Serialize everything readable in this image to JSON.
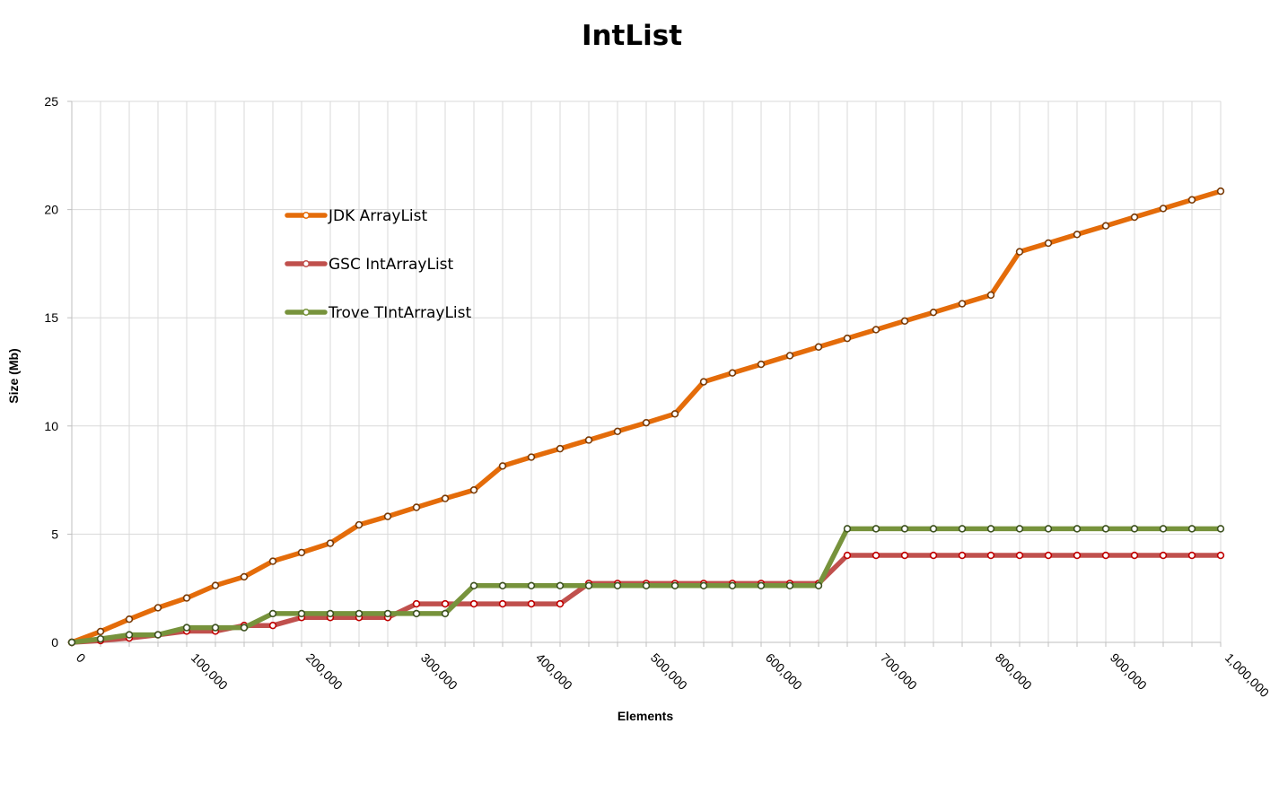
{
  "chart_data": {
    "type": "line",
    "title": "IntList",
    "xlabel": "Elements",
    "ylabel": "Size (Mb)",
    "xlim": [
      0,
      1000000
    ],
    "ylim": [
      0,
      25
    ],
    "x_ticks": [
      0,
      100000,
      200000,
      300000,
      400000,
      500000,
      600000,
      700000,
      800000,
      900000,
      1000000
    ],
    "x_tick_labels": [
      "0",
      "100,000",
      "200,000",
      "300,000",
      "400,000",
      "500,000",
      "600,000",
      "700,000",
      "800,000",
      "900,000",
      "1,000,000"
    ],
    "y_ticks": [
      0,
      5,
      10,
      15,
      20,
      25
    ],
    "y_tick_labels": [
      "0",
      "5",
      "10",
      "15",
      "20",
      "25"
    ],
    "grid": true,
    "legend_position": "upper-left-inside",
    "x": [
      0,
      25000,
      50000,
      75000,
      100000,
      125000,
      150000,
      175000,
      200000,
      225000,
      250000,
      275000,
      300000,
      325000,
      350000,
      375000,
      400000,
      425000,
      450000,
      475000,
      500000,
      525000,
      550000,
      575000,
      600000,
      625000,
      650000,
      675000,
      700000,
      725000,
      750000,
      775000,
      800000,
      825000,
      850000,
      875000,
      900000,
      925000,
      950000,
      975000,
      1000000
    ],
    "series": [
      {
        "name": "JDK ArrayList",
        "color": "#e46c0a",
        "values": [
          0,
          0.5,
          1.07,
          1.6,
          2.05,
          2.63,
          3.03,
          3.75,
          4.15,
          4.58,
          5.43,
          5.82,
          6.24,
          6.65,
          7.04,
          8.15,
          8.56,
          8.95,
          9.35,
          9.75,
          10.15,
          10.56,
          12.04,
          12.45,
          12.85,
          13.25,
          13.65,
          14.05,
          14.45,
          14.85,
          15.25,
          15.65,
          16.05,
          18.05,
          18.45,
          18.85,
          19.25,
          19.65,
          20.05,
          20.45,
          20.85
        ]
      },
      {
        "name": "GSC IntArrayList",
        "color": "#c0504d",
        "values": [
          0,
          0.08,
          0.2,
          0.35,
          0.52,
          0.52,
          0.78,
          0.78,
          1.15,
          1.15,
          1.15,
          1.15,
          1.78,
          1.78,
          1.78,
          1.78,
          1.78,
          1.78,
          2.72,
          2.72,
          2.72,
          2.72,
          2.72,
          2.72,
          2.72,
          2.72,
          2.72,
          4.02,
          4.02,
          4.02,
          4.02,
          4.02,
          4.02,
          4.02,
          4.02,
          4.02,
          4.02,
          4.02,
          4.02,
          4.02,
          4.02
        ]
      },
      {
        "name": "Trove TIntArrayList",
        "color": "#77933c",
        "values": [
          0,
          0.16,
          0.35,
          0.35,
          0.68,
          0.68,
          0.68,
          1.33,
          1.33,
          1.33,
          1.33,
          1.33,
          1.33,
          1.33,
          2.62,
          2.62,
          2.62,
          2.62,
          2.62,
          2.62,
          2.62,
          2.62,
          2.62,
          2.62,
          2.62,
          2.62,
          2.62,
          5.25,
          5.25,
          5.25,
          5.25,
          5.25,
          5.25,
          5.25,
          5.25,
          5.25,
          5.25,
          5.25,
          5.25,
          5.25,
          5.25
        ]
      }
    ]
  }
}
